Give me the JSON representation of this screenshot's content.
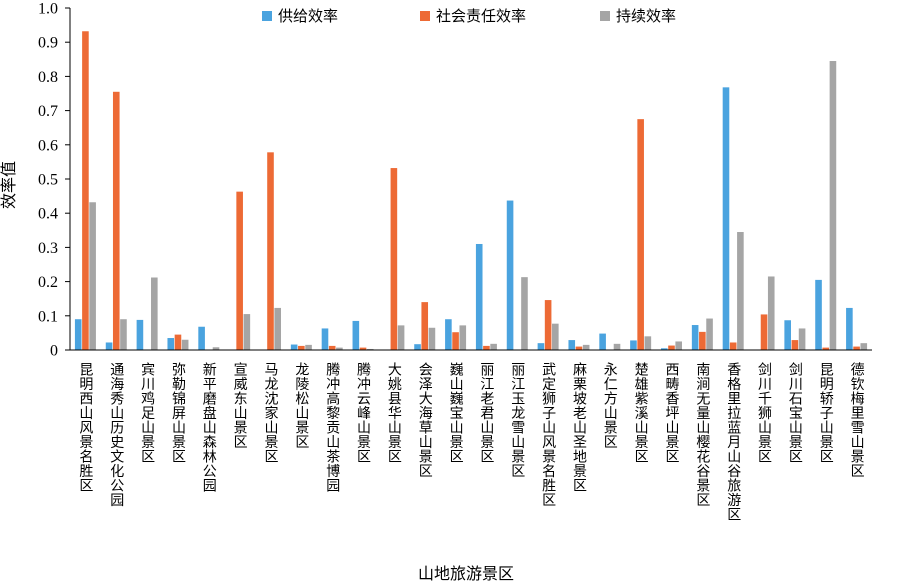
{
  "chart_data": {
    "type": "bar",
    "xlabel": "山地旅游景区",
    "ylabel": "效率值",
    "ylim": [
      0,
      1.0
    ],
    "yticks": [
      "0",
      "0.1",
      "0.2",
      "0.3",
      "0.4",
      "0.5",
      "0.6",
      "0.7",
      "0.8",
      "0.9",
      "1.0"
    ],
    "legend_position": "top",
    "colors": [
      "#4aa3df",
      "#ed6a35",
      "#a5a5a5"
    ],
    "categories": [
      "昆明西山风景名胜区",
      "通海秀山历史文化公园",
      "宾川鸡足山景区",
      "弥勒锦屏山景区",
      "新平磨盘山森林公园",
      "宣威东山景区",
      "马龙沈家山景区",
      "龙陵松山景区",
      "腾冲高黎贡山茶博园",
      "腾冲云峰山景区",
      "大姚县华山景区",
      "会泽大海草山景区",
      "巍山巍宝山景区",
      "丽江老君山景区",
      "丽江玉龙雪山景区",
      "武定狮子山风景名胜区",
      "麻栗坡老山圣地景区",
      "永仁方山景区",
      "楚雄紫溪山景区",
      "西畴香坪山景区",
      "南涧无量山樱花谷景区",
      "香格里拉蓝月山谷旅游区",
      "剑川千狮山景区",
      "剑川石宝山景区",
      "昆明轿子山景区",
      "德钦梅里雪山景区"
    ],
    "series": [
      {
        "name": "供给效率",
        "values": [
          0.09,
          0.022,
          0.088,
          0.035,
          0.068,
          0,
          0,
          0.016,
          0.063,
          0.085,
          0,
          0.017,
          0.09,
          0.31,
          0.437,
          0.02,
          0.029,
          0.048,
          0.028,
          0.005,
          0.073,
          0.768,
          0,
          0.087,
          0.205,
          0.123
        ]
      },
      {
        "name": "社会责任效率",
        "values": [
          0.932,
          0.755,
          0,
          0.045,
          0,
          0.463,
          0.578,
          0.012,
          0.012,
          0.007,
          0.532,
          0.14,
          0.052,
          0.012,
          0,
          0.146,
          0.01,
          0,
          0.675,
          0.013,
          0.053,
          0.022,
          0.104,
          0.029,
          0.007,
          0.01
        ]
      },
      {
        "name": "持续效率",
        "values": [
          0.432,
          0.09,
          0.212,
          0.03,
          0.008,
          0.105,
          0.123,
          0.015,
          0.007,
          0.003,
          0.072,
          0.065,
          0.072,
          0.018,
          0.213,
          0.077,
          0.015,
          0.018,
          0.04,
          0.025,
          0.092,
          0.345,
          0.215,
          0.063,
          0.845,
          0.02
        ]
      }
    ]
  }
}
